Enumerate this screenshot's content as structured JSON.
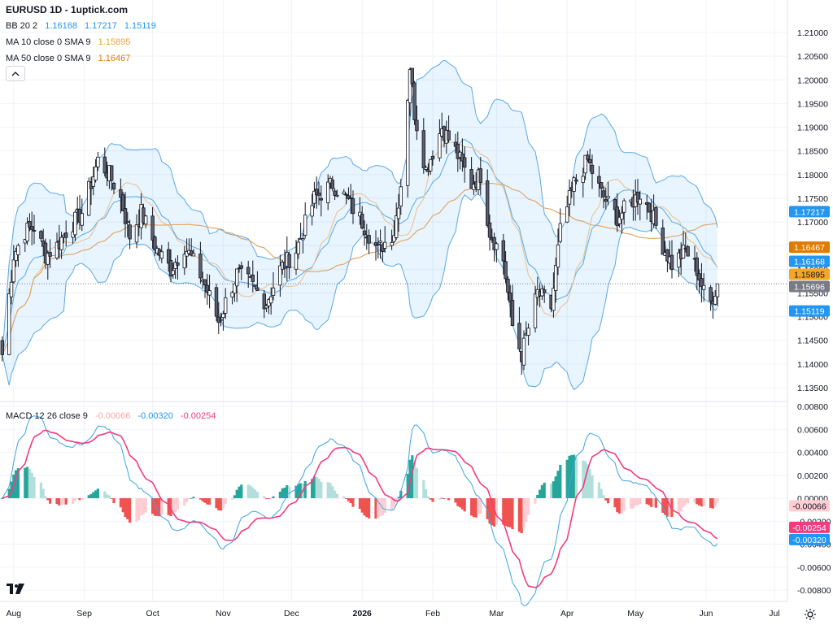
{
  "symbol_title": "EURUSD 1D - 1uptick.com",
  "colors": {
    "up": "#ffffff",
    "down": "#5d606b",
    "wick": "#131722",
    "bb_line": "#5aa9e6",
    "bb_fill": "rgba(33,150,243,0.10)",
    "ma10": "#e8c08a",
    "ma50": "#e0a25a",
    "macd_line": "#3ba3e6",
    "signal_line": "#f23c80",
    "hist_pos_strong": "#26a69a",
    "hist_pos_weak": "#b2dfdb",
    "hist_neg_strong": "#ef5350",
    "hist_neg_weak": "#ffcdd2",
    "grid": "#f0f3fa",
    "axis_text": "#131722"
  },
  "legend": {
    "bb": {
      "label": "BB 20 2",
      "basis": "1.16168",
      "upper": "1.17217",
      "lower": "1.15119",
      "color": "#2196f3"
    },
    "ma10": {
      "label": "MA 10 close 0 SMA 9",
      "value": "1.15895",
      "color": "#e8a33d"
    },
    "ma50": {
      "label": "MA 50 close 0 SMA 9",
      "value": "1.16467",
      "color": "#e07b00"
    },
    "macd": {
      "label": "MACD 12 26 close 9",
      "hist": "-0.00066",
      "macd": "-0.00320",
      "signal": "-0.00254",
      "hist_color": "#f7a9a8",
      "macd_color": "#2196f3",
      "signal_color": "#f23c80"
    }
  },
  "icons": {
    "collapse": "chevron-up-icon",
    "logo": "tradingview-logo-icon",
    "settings": "gear-icon"
  },
  "chart_data": [
    {
      "type": "candlestick",
      "title": "EURUSD 1D",
      "x_tick_labels": [
        "Aug",
        "Sep",
        "Oct",
        "Nov",
        "Dec",
        "2026",
        "Feb",
        "Mar",
        "Apr",
        "May",
        "Jun",
        "Jul"
      ],
      "ylim": [
        1.135,
        1.21
      ],
      "y_tick_labels": [
        "1.21000",
        "1.20500",
        "1.20000",
        "1.19500",
        "1.19000",
        "1.18500",
        "1.18000",
        "1.17500",
        "1.17000",
        "1.16500",
        "1.16000",
        "1.15500",
        "1.15000",
        "1.14500",
        "1.14000",
        "1.13500"
      ],
      "close_anchors": [
        [
          "2025-08-01",
          1.142
        ],
        [
          "2025-08-06",
          1.163
        ],
        [
          "2025-08-11",
          1.168
        ],
        [
          "2025-08-15",
          1.169
        ],
        [
          "2025-08-20",
          1.163
        ],
        [
          "2025-08-25",
          1.165
        ],
        [
          "2025-08-29",
          1.168
        ],
        [
          "2025-09-05",
          1.172
        ],
        [
          "2025-09-12",
          1.183
        ],
        [
          "2025-09-17",
          1.18
        ],
        [
          "2025-09-22",
          1.175
        ],
        [
          "2025-09-26",
          1.167
        ],
        [
          "2025-10-01",
          1.172
        ],
        [
          "2025-10-08",
          1.164
        ],
        [
          "2025-10-14",
          1.16
        ],
        [
          "2025-10-20",
          1.165
        ],
        [
          "2025-10-28",
          1.158
        ],
        [
          "2025-11-04",
          1.149
        ],
        [
          "2025-11-07",
          1.153
        ],
        [
          "2025-11-12",
          1.159
        ],
        [
          "2025-11-18",
          1.157
        ],
        [
          "2025-11-25",
          1.153
        ],
        [
          "2025-12-01",
          1.16
        ],
        [
          "2025-12-08",
          1.164
        ],
        [
          "2025-12-16",
          1.175
        ],
        [
          "2025-12-24",
          1.178
        ],
        [
          "2025-12-30",
          1.175
        ],
        [
          "2026-01-06",
          1.17
        ],
        [
          "2026-01-13",
          1.164
        ],
        [
          "2026-01-20",
          1.168
        ],
        [
          "2026-01-23",
          1.178
        ],
        [
          "2026-01-27",
          1.203
        ],
        [
          "2026-01-29",
          1.193
        ],
        [
          "2026-02-03",
          1.181
        ],
        [
          "2026-02-10",
          1.19
        ],
        [
          "2026-02-16",
          1.185
        ],
        [
          "2026-02-23",
          1.178
        ],
        [
          "2026-02-27",
          1.18
        ],
        [
          "2026-03-03",
          1.168
        ],
        [
          "2026-03-09",
          1.162
        ],
        [
          "2026-03-13",
          1.148
        ],
        [
          "2026-03-17",
          1.142
        ],
        [
          "2026-03-24",
          1.155
        ],
        [
          "2026-03-30",
          1.152
        ],
        [
          "2026-04-03",
          1.168
        ],
        [
          "2026-04-09",
          1.178
        ],
        [
          "2026-04-15",
          1.183
        ],
        [
          "2026-04-21",
          1.176
        ],
        [
          "2026-04-28",
          1.171
        ],
        [
          "2026-05-04",
          1.174
        ],
        [
          "2026-05-08",
          1.176
        ],
        [
          "2026-05-13",
          1.172
        ],
        [
          "2026-05-18",
          1.165
        ],
        [
          "2026-05-22",
          1.161
        ],
        [
          "2026-05-28",
          1.164
        ],
        [
          "2026-06-02",
          1.16
        ],
        [
          "2026-06-05",
          1.155
        ],
        [
          "2026-06-08",
          1.153
        ],
        [
          "2026-06-11",
          1.157
        ]
      ],
      "indicators": [
        "BB 20 2",
        "MA 10 close 0 SMA 9",
        "MA 50 close 0 SMA 9"
      ],
      "last_price": "1.15696"
    },
    {
      "type": "line+bar",
      "title": "MACD 12 26 close 9",
      "ylim": [
        -0.008,
        0.008
      ],
      "y_tick_labels": [
        "0.00800",
        "0.00600",
        "0.00400",
        "0.00200",
        "0.00000",
        "-0.00200",
        "-0.00400",
        "-0.00600",
        "-0.00800"
      ],
      "last_values": {
        "histogram": -0.00066,
        "macd": -0.0032,
        "signal": -0.00254
      }
    }
  ]
}
